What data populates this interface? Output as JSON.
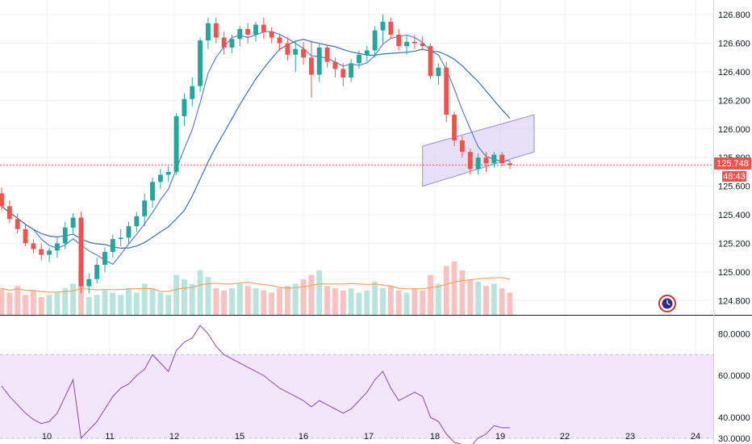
{
  "colors": {
    "up": "#26a69a",
    "down": "#ef5350",
    "vol_up": "#b9e3dd",
    "vol_down": "#f7c2c0",
    "ma_fast": "#5b7fc4",
    "ma_slow": "#3f6fa8",
    "vol_ma": "#f4a261",
    "rsi_line": "#8e44ad",
    "rsi_band": "#f3e6fb",
    "channel_fill": "#d7cdf3",
    "channel_stroke": "#9b8fd8",
    "price_line": "#ef5350",
    "grid": "#eef0f3"
  },
  "main": {
    "price_label": "125.748",
    "timer_label": "48:43",
    "clock_icon": "timer-clock-icon"
  },
  "chart_data": [
    {
      "type": "candlestick",
      "name": "price",
      "current_price": 125.748,
      "y_ticks": [
        "126.800",
        "126.600",
        "126.400",
        "126.200",
        "126.000",
        "125.800",
        "125.600",
        "125.400",
        "125.200",
        "125.000",
        "124.800"
      ],
      "ylim": [
        124.7,
        126.88
      ],
      "x_ticks": [
        "10",
        "11",
        "12",
        "15",
        "16",
        "17",
        "18",
        "19",
        "22",
        "23",
        "24"
      ],
      "candles": [
        [
          125.55,
          125.59,
          125.43,
          125.46
        ],
        [
          125.46,
          125.5,
          125.34,
          125.37
        ],
        [
          125.37,
          125.41,
          125.27,
          125.3
        ],
        [
          125.3,
          125.33,
          125.18,
          125.2
        ],
        [
          125.2,
          125.23,
          125.13,
          125.16
        ],
        [
          125.16,
          125.2,
          125.08,
          125.12
        ],
        [
          125.12,
          125.17,
          125.07,
          125.15
        ],
        [
          125.15,
          125.24,
          125.1,
          125.2
        ],
        [
          125.2,
          125.35,
          125.16,
          125.31
        ],
        [
          125.31,
          125.41,
          125.27,
          125.38
        ],
        [
          125.38,
          125.42,
          124.85,
          124.9
        ],
        [
          124.9,
          124.99,
          124.85,
          124.95
        ],
        [
          124.95,
          125.1,
          124.92,
          125.05
        ],
        [
          125.05,
          125.17,
          125,
          125.14
        ],
        [
          125.14,
          125.26,
          125.1,
          125.23
        ],
        [
          125.23,
          125.3,
          125.18,
          125.24
        ],
        [
          125.24,
          125.35,
          125.2,
          125.32
        ],
        [
          125.32,
          125.42,
          125.28,
          125.39
        ],
        [
          125.39,
          125.55,
          125.32,
          125.5
        ],
        [
          125.5,
          125.66,
          125.45,
          125.63
        ],
        [
          125.63,
          125.72,
          125.58,
          125.68
        ],
        [
          125.68,
          125.74,
          125.63,
          125.7
        ],
        [
          125.7,
          126.11,
          125.68,
          126.09
        ],
        [
          126.09,
          126.25,
          126.02,
          126.21
        ],
        [
          126.21,
          126.36,
          126.16,
          126.3
        ],
        [
          126.3,
          126.64,
          126.26,
          126.62
        ],
        [
          126.62,
          126.78,
          126.56,
          126.74
        ],
        [
          126.74,
          126.78,
          126.6,
          126.64
        ],
        [
          126.64,
          126.68,
          126.52,
          126.57
        ],
        [
          126.57,
          126.66,
          126.53,
          126.63
        ],
        [
          126.63,
          126.72,
          126.58,
          126.7
        ],
        [
          126.7,
          126.74,
          126.6,
          126.66
        ],
        [
          126.66,
          126.75,
          126.61,
          126.73
        ],
        [
          126.73,
          126.78,
          126.63,
          126.68
        ],
        [
          126.68,
          126.71,
          126.6,
          126.64
        ],
        [
          126.64,
          126.66,
          126.55,
          126.6
        ],
        [
          126.6,
          126.64,
          126.48,
          126.52
        ],
        [
          126.52,
          126.62,
          126.4,
          126.56
        ],
        [
          126.56,
          126.61,
          126.45,
          126.5
        ],
        [
          126.5,
          126.62,
          126.22,
          126.38
        ],
        [
          126.38,
          126.6,
          126.33,
          126.57
        ],
        [
          126.57,
          126.59,
          126.43,
          126.47
        ],
        [
          126.47,
          126.5,
          126.36,
          126.42
        ],
        [
          126.42,
          126.46,
          126.3,
          126.36
        ],
        [
          126.36,
          126.49,
          126.33,
          126.46
        ],
        [
          126.46,
          126.55,
          126.42,
          126.52
        ],
        [
          126.52,
          126.58,
          126.47,
          126.55
        ],
        [
          126.55,
          126.72,
          126.5,
          126.69
        ],
        [
          126.69,
          126.8,
          126.6,
          126.75
        ],
        [
          126.75,
          126.78,
          126.63,
          126.66
        ],
        [
          126.66,
          126.7,
          126.55,
          126.58
        ],
        [
          126.58,
          126.66,
          126.52,
          126.61
        ],
        [
          126.61,
          126.66,
          126.56,
          126.6
        ],
        [
          126.6,
          126.65,
          126.55,
          126.58
        ],
        [
          126.58,
          126.6,
          126.35,
          126.37
        ],
        [
          126.37,
          126.46,
          126.31,
          126.43
        ],
        [
          126.43,
          126.47,
          126.05,
          126.1
        ],
        [
          126.1,
          126.12,
          125.88,
          125.92
        ],
        [
          125.92,
          125.95,
          125.8,
          125.84
        ],
        [
          125.84,
          125.86,
          125.68,
          125.72
        ],
        [
          125.72,
          125.83,
          125.68,
          125.8
        ],
        [
          125.8,
          125.84,
          125.7,
          125.76
        ],
        [
          125.76,
          125.84,
          125.73,
          125.82
        ],
        [
          125.82,
          125.84,
          125.74,
          125.76
        ],
        [
          125.76,
          125.78,
          125.72,
          125.748
        ]
      ],
      "volume": [
        12,
        10,
        13,
        9,
        11,
        8,
        9,
        10,
        12,
        14,
        22,
        8,
        9,
        11,
        10,
        9,
        12,
        10,
        14,
        12,
        10,
        9,
        18,
        16,
        14,
        20,
        17,
        12,
        11,
        12,
        14,
        13,
        12,
        11,
        10,
        12,
        13,
        14,
        16,
        18,
        20,
        13,
        12,
        11,
        12,
        10,
        11,
        15,
        12,
        13,
        11,
        10,
        12,
        11,
        18,
        14,
        22,
        24,
        20,
        16,
        15,
        13,
        14,
        12,
        10
      ],
      "volume_ylim": [
        0,
        40
      ]
    },
    {
      "type": "line",
      "name": "rsi",
      "y_ticks": [
        "80.0000",
        "60.0000",
        "40.0000",
        "30.0000"
      ],
      "ylim": [
        28,
        86
      ],
      "band": [
        30,
        70
      ],
      "values": [
        55,
        50,
        46,
        42,
        39,
        37,
        38,
        42,
        50,
        58,
        30,
        34,
        38,
        44,
        50,
        54,
        56,
        60,
        63,
        70,
        66,
        62,
        72,
        76,
        78,
        84,
        80,
        74,
        70,
        68,
        66,
        64,
        62,
        60,
        57,
        54,
        52,
        50,
        48,
        45,
        48,
        46,
        44,
        42,
        44,
        48,
        52,
        58,
        62,
        54,
        48,
        50,
        52,
        50,
        40,
        38,
        32,
        28,
        27,
        26,
        30,
        32,
        36,
        35,
        35
      ]
    }
  ]
}
